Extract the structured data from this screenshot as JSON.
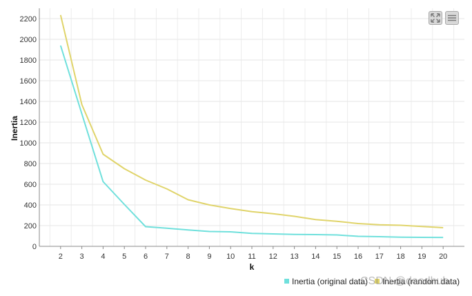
{
  "chart_data": {
    "type": "line",
    "title": "",
    "xlabel": "k",
    "ylabel": "Inertia",
    "x": [
      2,
      3,
      4,
      5,
      6,
      7,
      8,
      9,
      10,
      11,
      12,
      13,
      14,
      15,
      16,
      17,
      18,
      19,
      20
    ],
    "xlim": [
      1,
      21
    ],
    "ylim": [
      0,
      2300
    ],
    "yticks": [
      0,
      200,
      400,
      600,
      800,
      1000,
      1200,
      1400,
      1600,
      1800,
      2000,
      2200
    ],
    "grid": true,
    "legend_position": "bottom-right",
    "series": [
      {
        "name": "Inertia (original data)",
        "color": "#6fe0dc",
        "values": [
          1940,
          1280,
          625,
          405,
          190,
          175,
          158,
          143,
          140,
          125,
          120,
          115,
          113,
          110,
          97,
          93,
          88,
          87,
          86
        ]
      },
      {
        "name": "Inertia (random data)",
        "color": "#e0d46a",
        "values": [
          2235,
          1370,
          890,
          750,
          640,
          555,
          450,
          400,
          365,
          335,
          315,
          290,
          258,
          242,
          220,
          208,
          203,
          192,
          180
        ]
      }
    ]
  },
  "toolbar": {
    "expand_icon": "expand-icon",
    "menu_icon": "hamburger-menu-icon"
  },
  "watermark": "CSDN @doodhub"
}
